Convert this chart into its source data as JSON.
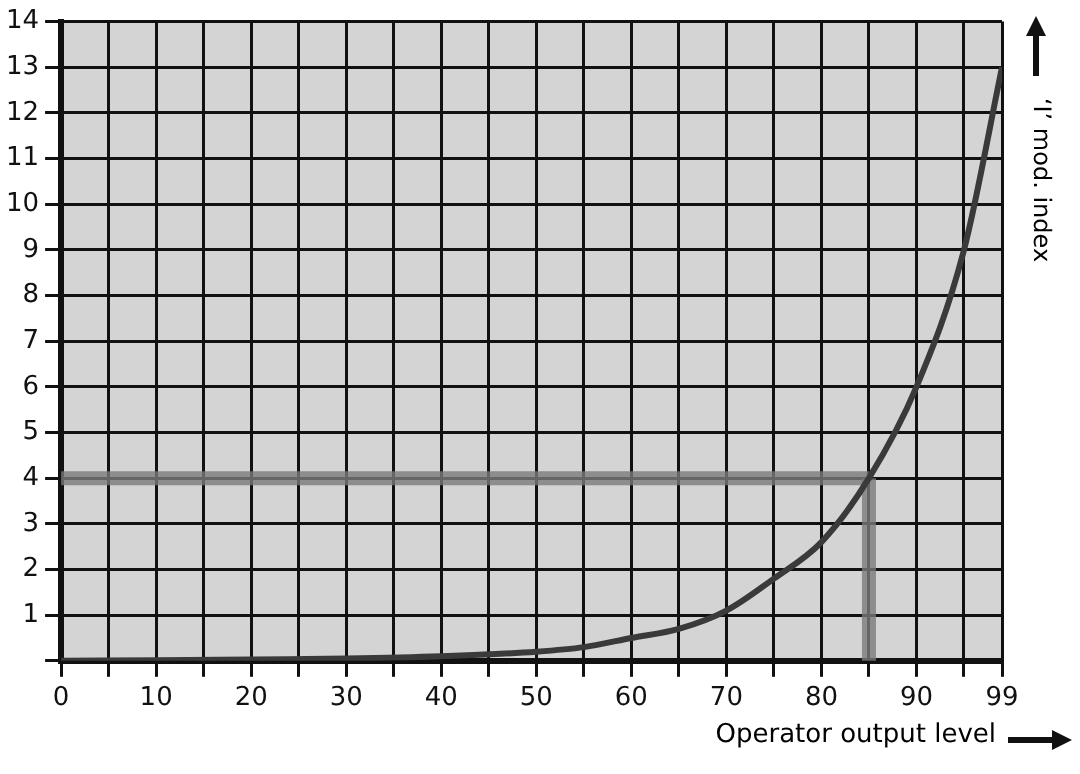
{
  "chart_data": {
    "type": "line",
    "xlabel": "Operator output level",
    "ylabel": "‘I’ mod. index",
    "x": [
      0,
      10,
      20,
      30,
      40,
      50,
      55,
      60,
      65,
      70,
      75,
      80,
      85,
      90,
      95,
      99
    ],
    "series": [
      {
        "color": "#3a3a3a",
        "values": [
          0,
          0.01,
          0.03,
          0.05,
          0.1,
          0.2,
          0.3,
          0.5,
          0.7,
          1.1,
          1.8,
          2.6,
          4,
          6,
          9,
          13
        ]
      }
    ],
    "xlim": [
      0,
      99
    ],
    "xticks": [
      0,
      {
        "value": 5,
        "label": null
      },
      10,
      {
        "value": 15,
        "label": null
      },
      20,
      {
        "value": 25,
        "label": null
      },
      30,
      {
        "value": 35,
        "label": null
      },
      40,
      {
        "value": 45,
        "label": null
      },
      50,
      {
        "value": 55,
        "label": null
      },
      60,
      {
        "value": 65,
        "label": null
      },
      70,
      {
        "value": 75,
        "label": null
      },
      80,
      {
        "value": 85,
        "label": null
      },
      90,
      {
        "value": 95,
        "label": null
      },
      99
    ],
    "ylim": [
      0,
      14
    ],
    "yticks": [
      {
        "value": 0,
        "label": null
      },
      1,
      2,
      3,
      4,
      5,
      6,
      7,
      8,
      9,
      10,
      11,
      12,
      13,
      14
    ],
    "ref_lines": [
      {
        "axis": "y",
        "value": 4,
        "label": null,
        "color": "#7a7a7a"
      },
      {
        "axis": "x",
        "value": 85,
        "label": null,
        "color": "#7a7a7a"
      }
    ],
    "grid": true,
    "marker": "none",
    "line_style": "solid",
    "legend": false
  }
}
